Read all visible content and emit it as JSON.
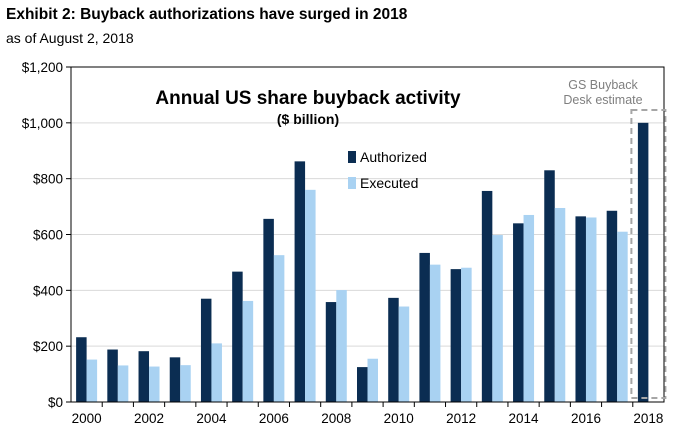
{
  "exhibit": {
    "title": "Exhibit 2: Buyback authorizations have surged in 2018",
    "subtitle": "as of August 2, 2018"
  },
  "chart_data": {
    "type": "bar",
    "title": "Annual US share buyback activity",
    "subtitle": "($ billion)",
    "xlabel": "",
    "ylabel": "",
    "ylim": [
      0,
      1200
    ],
    "yticks": [
      0,
      200,
      400,
      600,
      800,
      1000,
      1200
    ],
    "ytick_labels": [
      "$0",
      "$200",
      "$400",
      "$600",
      "$800",
      "$1,000",
      "$1,200"
    ],
    "categories": [
      "2000",
      "2001",
      "2002",
      "2003",
      "2004",
      "2005",
      "2006",
      "2007",
      "2008",
      "2009",
      "2010",
      "2011",
      "2012",
      "2013",
      "2014",
      "2015",
      "2016",
      "2017",
      "2018"
    ],
    "xtick_labels": [
      "2000",
      "",
      "2002",
      "",
      "2004",
      "",
      "2006",
      "",
      "2008",
      "",
      "2010",
      "",
      "2012",
      "",
      "2014",
      "",
      "2016",
      "",
      "2018"
    ],
    "series": [
      {
        "name": "Authorized",
        "color": "#0b2d52",
        "values": [
          232,
          188,
          182,
          160,
          370,
          467,
          656,
          862,
          358,
          125,
          373,
          534,
          476,
          756,
          640,
          830,
          665,
          685,
          1000
        ]
      },
      {
        "name": "Executed",
        "color": "#a9d2f2",
        "values": [
          152,
          131,
          127,
          132,
          210,
          362,
          526,
          760,
          401,
          155,
          342,
          492,
          481,
          598,
          670,
          695,
          661,
          610,
          null
        ]
      }
    ],
    "legend": "upper-center",
    "annotation": {
      "lines": [
        "GS Buyback",
        "Desk estimate"
      ],
      "target": "2018"
    }
  }
}
